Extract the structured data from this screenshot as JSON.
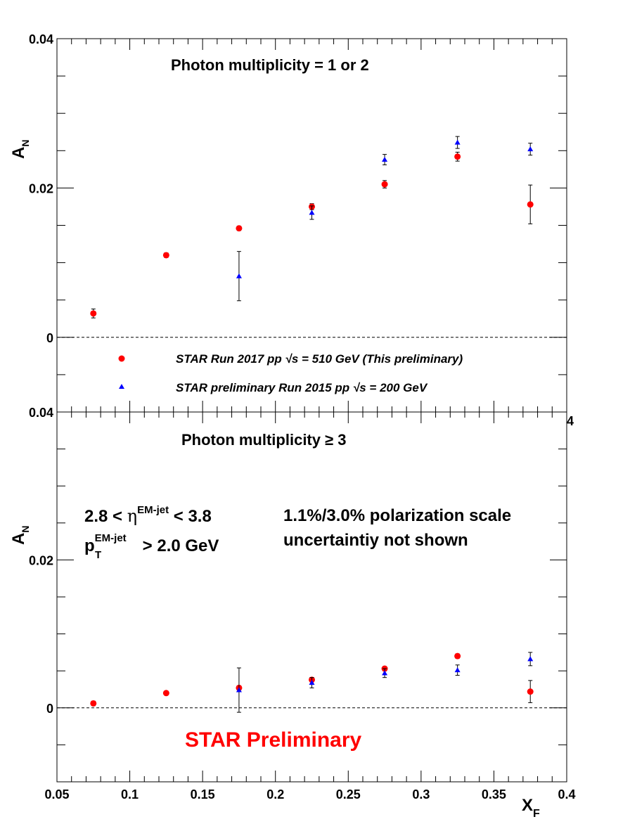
{
  "chart_data": [
    {
      "type": "scatter",
      "title": "Photon multiplicity = 1 or 2",
      "ylabel": "A",
      "ylabel_sub": "N",
      "xlim": [
        0.05,
        0.4
      ],
      "ylim": [
        -0.01,
        0.04
      ],
      "y_tick_labels": [
        {
          "value": 0.04,
          "label": "0.04"
        },
        {
          "value": 0.02,
          "label": "0.02"
        },
        {
          "value": 0,
          "label": "0"
        }
      ],
      "reference_line": 0,
      "grid": false,
      "legend": {
        "placement": "bottom",
        "entries": [
          {
            "name": "STAR Run 2017 pp  √s = 510 GeV (This preliminary)",
            "marker": "circle",
            "color": "#ff0000"
          },
          {
            "name": "STAR preliminary Run 2015 pp  √s = 200 GeV",
            "marker": "triangle",
            "color": "#0000ff"
          }
        ]
      },
      "series": [
        {
          "name": "STAR Run 2017 pp  √s = 510 GeV (This preliminary)",
          "marker": "circle",
          "color": "#ff0000",
          "x": [
            0.075,
            0.125,
            0.175,
            0.225,
            0.275,
            0.325,
            0.375
          ],
          "y": [
            0.0032,
            0.011,
            0.0146,
            0.0175,
            0.0205,
            0.0242,
            0.0178
          ],
          "yerr": [
            0.0006,
            0.0003,
            0.0003,
            0.0004,
            0.0005,
            0.0006,
            0.0026
          ]
        },
        {
          "name": "STAR preliminary Run 2015 pp  √s = 200 GeV",
          "marker": "triangle",
          "color": "#0000ff",
          "x": [
            0.175,
            0.225,
            0.275,
            0.325,
            0.375
          ],
          "y": [
            0.0082,
            0.0167,
            0.0238,
            0.0261,
            0.0252
          ],
          "yerr": [
            0.0033,
            0.0009,
            0.0007,
            0.0008,
            0.0008
          ]
        }
      ]
    },
    {
      "type": "scatter",
      "title": "Photon multiplicity ≥ 3",
      "xlabel": "X",
      "xlabel_sub": "F",
      "ylabel": "A",
      "ylabel_sub": "N",
      "xlim": [
        0.05,
        0.4
      ],
      "ylim": [
        -0.01,
        0.04
      ],
      "x_tick_labels": [
        "0.05",
        "0.1",
        "0.15",
        "0.2",
        "0.25",
        "0.3",
        "0.35",
        "0.4"
      ],
      "y_tick_labels": [
        {
          "value": 0.04,
          "label": "0.04"
        },
        {
          "value": 0.02,
          "label": "0.02"
        },
        {
          "value": 0,
          "label": "0"
        }
      ],
      "reference_line": 0,
      "grid": false,
      "series": [
        {
          "name": "STAR Run 2017 pp  √s = 510 GeV (This preliminary)",
          "marker": "circle",
          "color": "#ff0000",
          "x": [
            0.075,
            0.125,
            0.175,
            0.225,
            0.275,
            0.325,
            0.375
          ],
          "y": [
            0.0006,
            0.002,
            0.0027,
            0.0038,
            0.0053,
            0.007,
            0.0022
          ],
          "yerr": [
            0.0003,
            0.0002,
            0.0003,
            0.0003,
            0.0003,
            0.0003,
            0.0015
          ]
        },
        {
          "name": "STAR preliminary Run 2015 pp  √s = 200 GeV",
          "marker": "triangle",
          "color": "#0000ff",
          "x": [
            0.175,
            0.225,
            0.275,
            0.325,
            0.375
          ],
          "y": [
            0.0024,
            0.0034,
            0.0047,
            0.0051,
            0.0066
          ],
          "yerr": [
            0.003,
            0.0007,
            0.0006,
            0.0007,
            0.0009
          ]
        }
      ]
    }
  ],
  "annotations": {
    "eta_prefix": "2.8 < ",
    "eta_symbol": "η",
    "eta_superscript": "EM-jet",
    "eta_suffix": " < 3.8",
    "pt_symbol": "p",
    "pt_superscript": "EM-jet",
    "pt_subscript": "T",
    "pt_suffix": " > 2.0 GeV",
    "polarization_line1": "1.1%/3.0% polarization scale",
    "polarization_line2": "uncertaintiy not shown",
    "preliminary": "STAR Preliminary",
    "stray_exponent": "4"
  },
  "colors": {
    "red_series": "#ff0000",
    "blue_series": "#0000ff",
    "axes": "#000000",
    "preliminary": "#ff0000"
  }
}
